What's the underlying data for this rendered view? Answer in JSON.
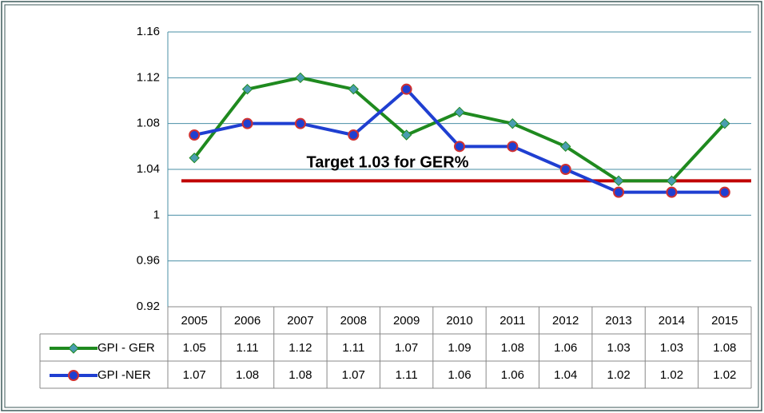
{
  "chart_data": {
    "type": "line",
    "categories": [
      "2005",
      "2006",
      "2007",
      "2008",
      "2009",
      "2010",
      "2011",
      "2012",
      "2013",
      "2014",
      "2015"
    ],
    "series": [
      {
        "name": "GPI - GER",
        "color": "#1f8a1f",
        "marker": "diamond",
        "marker_color": "#4a9db0",
        "values": [
          1.05,
          1.11,
          1.12,
          1.11,
          1.07,
          1.09,
          1.08,
          1.06,
          1.03,
          1.03,
          1.08
        ]
      },
      {
        "name": "GPI -NER",
        "color": "#1f3fd1",
        "marker": "circle",
        "marker_color": "#d03030",
        "values": [
          1.07,
          1.08,
          1.08,
          1.07,
          1.11,
          1.06,
          1.06,
          1.04,
          1.02,
          1.02,
          1.02
        ]
      }
    ],
    "target": {
      "label": "Target 1.03 for GER%",
      "value": 1.03,
      "color": "#c00000"
    },
    "ylim": [
      0.92,
      1.16
    ],
    "yticks": [
      0.92,
      0.96,
      1,
      1.04,
      1.08,
      1.12,
      1.16
    ],
    "grid": true,
    "data_table": true
  }
}
